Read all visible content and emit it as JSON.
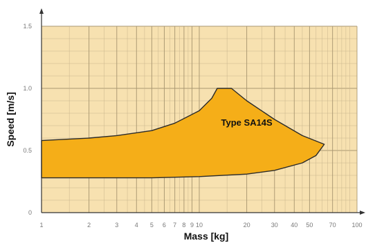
{
  "chart_data": {
    "type": "area",
    "title": "",
    "xlabel": "Mass [kg]",
    "ylabel": "Speed [m/s]",
    "xscale": "log",
    "xlim": [
      1,
      100
    ],
    "ylim": [
      0,
      1.5
    ],
    "grid": true,
    "x_ticks": [
      {
        "value": 1,
        "label": "1"
      },
      {
        "value": 2,
        "label": "2"
      },
      {
        "value": 3,
        "label": "3"
      },
      {
        "value": 4,
        "label": "4"
      },
      {
        "value": 5,
        "label": "5"
      },
      {
        "value": 6,
        "label": "6"
      },
      {
        "value": 7,
        "label": "7"
      },
      {
        "value": 8,
        "label": "8"
      },
      {
        "value": 9,
        "label": "9"
      },
      {
        "value": 10,
        "label": "10"
      },
      {
        "value": 20,
        "label": "20"
      },
      {
        "value": 30,
        "label": "30"
      },
      {
        "value": 40,
        "label": "40"
      },
      {
        "value": 50,
        "label": "50"
      },
      {
        "value": 70,
        "label": "70"
      },
      {
        "value": 100,
        "label": "100"
      }
    ],
    "y_ticks": [
      {
        "value": 0,
        "label": "0"
      },
      {
        "value": 0.5,
        "label": "0.5"
      },
      {
        "value": 1.0,
        "label": "1.0"
      },
      {
        "value": 1.5,
        "label": "1.5"
      }
    ],
    "series": [
      {
        "name": "Type SA14S",
        "upper": [
          [
            1,
            0.58
          ],
          [
            2,
            0.6
          ],
          [
            3,
            0.62
          ],
          [
            5,
            0.66
          ],
          [
            7,
            0.72
          ],
          [
            10,
            0.82
          ],
          [
            12,
            0.92
          ],
          [
            13,
            1.0
          ],
          [
            16,
            1.0
          ],
          [
            20,
            0.9
          ],
          [
            30,
            0.75
          ],
          [
            45,
            0.62
          ],
          [
            62,
            0.55
          ]
        ],
        "lower": [
          [
            1,
            0.28
          ],
          [
            5,
            0.28
          ],
          [
            10,
            0.29
          ],
          [
            20,
            0.31
          ],
          [
            30,
            0.34
          ],
          [
            45,
            0.4
          ],
          [
            55,
            0.46
          ],
          [
            62,
            0.55
          ]
        ]
      }
    ],
    "region_label": "Type SA14S",
    "colors": {
      "background": "#f7e1b0",
      "grid": "#c8b58c",
      "area": "#f5ae18",
      "outline": "#2a2a2a"
    }
  }
}
